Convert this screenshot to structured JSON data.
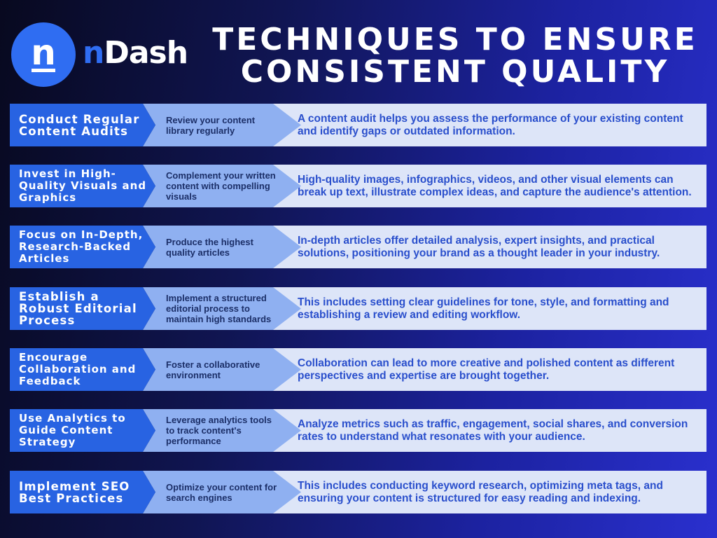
{
  "brand": {
    "logo_letter": "n",
    "name_prefix": "n",
    "name_rest": "Dash"
  },
  "title": {
    "line1": "TECHNIQUES TO ENSURE",
    "line2": "CONSISTENT QUALITY"
  },
  "rows": [
    {
      "label": "Conduct Regular Content Audits",
      "summary": "Review your content library regularly",
      "detail": "A content audit helps you assess the performance of your existing content and identify gaps or outdated information."
    },
    {
      "label": "Invest in High-Quality Visuals and Graphics",
      "summary": "Complement your written content with compelling visuals",
      "detail": "High-quality images, infographics, videos, and other visual elements can break up text, illustrate complex ideas, and capture the audience's attention."
    },
    {
      "label": "Focus on In-Depth, Research-Backed Articles",
      "summary": "Produce the highest quality articles",
      "detail": "In-depth articles offer detailed analysis, expert insights, and practical solutions, positioning your brand as a thought leader in your industry."
    },
    {
      "label": "Establish a Robust Editorial Process",
      "summary": "Implement a structured editorial process to maintain high standards",
      "detail": "This includes setting clear guidelines for tone, style, and formatting and establishing a review and editing workflow."
    },
    {
      "label": "Encourage Collaboration and Feedback",
      "summary": "Foster a collaborative environment",
      "detail": "Collaboration can lead to more creative and polished content as different perspectives and expertise are brought together."
    },
    {
      "label": "Use Analytics to Guide Content Strategy",
      "summary": "Leverage analytics tools to track content's performance",
      "detail": "Analyze metrics such as traffic, engagement, social shares, and conversion rates to understand what resonates with your audience."
    },
    {
      "label": "Implement SEO Best Practices",
      "summary": "Optimize your content for search engines",
      "detail": "This includes conducting keyword research, optimizing meta tags, and ensuring your content is structured for easy reading and indexing."
    }
  ],
  "colors": {
    "label_bg": "#2863e2",
    "summary_bg": "#8fb0f1",
    "detail_bg": "#dde5f8",
    "detail_text": "#2a4fcc",
    "logo_circle": "#2f6df2"
  }
}
